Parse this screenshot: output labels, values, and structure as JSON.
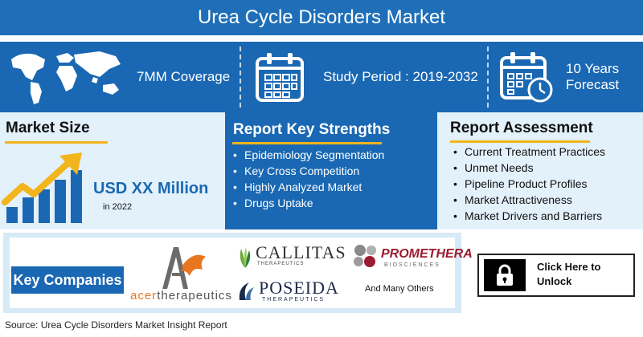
{
  "title": "Urea Cycle Disorders Market",
  "stats": {
    "coverage": {
      "label": "7MM Coverage",
      "icon": "world-map-icon"
    },
    "study_period": {
      "label": "Study Period : 2019-2032",
      "icon": "calendar-icon"
    },
    "forecast": {
      "line1": "10 Years",
      "line2": "Forecast",
      "icon": "calendar-clock-icon"
    }
  },
  "market_size": {
    "heading": "Market Size",
    "value": "USD XX Million",
    "year": "in 2022",
    "icon": "growth-bar-chart-icon"
  },
  "strengths": {
    "heading": "Report Key Strengths",
    "items": [
      "Epidemiology Segmentation",
      "Key Cross Competition",
      "Highly Analyzed Market",
      "Drugs Uptake"
    ]
  },
  "assessment": {
    "heading": "Report Assessment",
    "items": [
      "Current Treatment Practices",
      "Unmet Needs",
      "Pipeline Product Profiles",
      "Market Attractiveness",
      "Market Drivers and Barriers"
    ]
  },
  "companies": {
    "label": "Key Companies",
    "acer": {
      "name": "acertherapeutics",
      "part1": "acer",
      "part2": "therapeutics"
    },
    "callitas": {
      "name": "CALLITAS",
      "sub": "THERAPEUTICS"
    },
    "promethera": {
      "name": "PROMETHERA",
      "sub": "BIOSCIENCES"
    },
    "poseida": {
      "name": "POSEIDA",
      "sub": "THERAPEUTICS"
    },
    "others": "And Many Others"
  },
  "unlock": {
    "line1": "Click Here to",
    "line2": "Unlock",
    "icon": "padlock-icon"
  },
  "source": "Source: Urea Cycle Disorders Market Insight Report",
  "colors": {
    "primary_blue": "#1a68b3",
    "title_blue": "#1f6fb8",
    "light_blue": "#e3f1fb",
    "accent_yellow": "#f2b51c",
    "acer_orange": "#e8761e",
    "promethera_red": "#9b1b30",
    "poseida_navy": "#1b2a4a"
  }
}
